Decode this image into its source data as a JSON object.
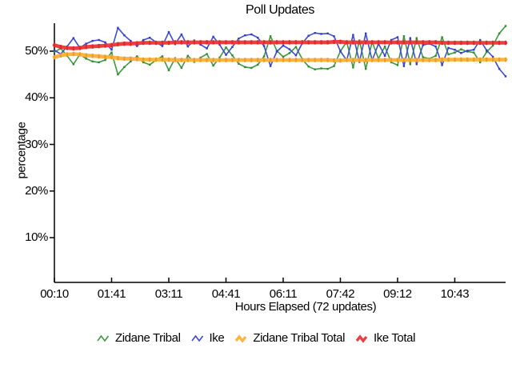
{
  "window": {
    "background": "#ffffff"
  },
  "chart_data": {
    "type": "line",
    "title": "Poll Updates",
    "xlabel": "Hours Elapsed (72 updates)",
    "ylabel": "percentage",
    "num_points": 72,
    "ylim": [
      0.4,
      56.0
    ],
    "grid": false,
    "legend_position": "bottom",
    "axis_color": "#000000",
    "y_ticks": [
      {
        "value": 10,
        "label": "10%"
      },
      {
        "value": 20,
        "label": "20%"
      },
      {
        "value": 30,
        "label": "30%"
      },
      {
        "value": 40,
        "label": "40%"
      },
      {
        "value": 50,
        "label": "50%"
      }
    ],
    "x_ticks": [
      {
        "index": 0,
        "label": "00:10"
      },
      {
        "index": 9,
        "label": "01:41"
      },
      {
        "index": 18,
        "label": "03:11"
      },
      {
        "index": 27,
        "label": "04:41"
      },
      {
        "index": 36,
        "label": "06:11"
      },
      {
        "index": 45,
        "label": "07:42"
      },
      {
        "index": 54,
        "label": "09:12"
      },
      {
        "index": 63,
        "label": "10:43"
      }
    ],
    "series": [
      {
        "name": "Zidane Tribal",
        "color": "#3d9b3d",
        "width": 1.6,
        "legend_stroke": 1.6,
        "marker": {
          "w": 2.4,
          "h": 2.4,
          "color": "#2e8b2e"
        },
        "values": [
          49.8,
          50.6,
          49.0,
          47.2,
          49.3,
          48.4,
          47.8,
          47.6,
          48.1,
          49.7,
          45.0,
          46.6,
          47.8,
          48.9,
          47.6,
          47.1,
          48.1,
          48.9,
          45.9,
          48.5,
          46.4,
          49.0,
          47.7,
          48.6,
          49.4,
          46.9,
          48.6,
          50.8,
          49.1,
          47.3,
          46.6,
          46.4,
          47.1,
          48.9,
          53.2,
          50.1,
          48.8,
          49.6,
          50.9,
          48.3,
          46.7,
          46.1,
          46.3,
          46.2,
          46.8,
          50.0,
          52.0,
          46.5,
          52.3,
          46.2,
          52.0,
          48.4,
          51.0,
          47.6,
          47.0,
          53.2,
          47.2,
          52.8,
          48.7,
          48.4,
          49.0,
          53.0,
          49.3,
          49.7,
          50.4,
          49.9,
          49.7,
          47.6,
          49.8,
          51.2,
          53.8,
          55.4
        ]
      },
      {
        "name": "Ike",
        "color": "#3d4cd3",
        "width": 1.6,
        "legend_stroke": 1.6,
        "marker": {
          "w": 2.4,
          "h": 2.4,
          "color": "#2f3cc4"
        },
        "values": [
          50.2,
          49.4,
          51.0,
          52.8,
          50.7,
          51.6,
          52.2,
          52.4,
          51.9,
          50.3,
          55.0,
          53.4,
          52.2,
          51.1,
          52.4,
          52.9,
          51.9,
          51.1,
          54.1,
          51.5,
          53.6,
          51.0,
          52.3,
          51.4,
          50.6,
          53.1,
          51.4,
          49.2,
          50.9,
          52.7,
          53.4,
          53.6,
          52.9,
          51.1,
          46.8,
          49.9,
          51.2,
          50.4,
          49.1,
          51.7,
          53.3,
          53.9,
          53.7,
          53.8,
          53.2,
          50.0,
          48.0,
          53.5,
          47.7,
          53.8,
          48.0,
          51.6,
          49.0,
          52.4,
          53.0,
          46.8,
          52.8,
          47.2,
          51.3,
          51.6,
          51.0,
          47.0,
          50.7,
          50.3,
          49.6,
          50.1,
          50.3,
          52.4,
          50.2,
          48.8,
          46.2,
          44.6
        ]
      },
      {
        "name": "Zidane Tribal Total",
        "color": "#fcb440",
        "width": 4.6,
        "legend_stroke": 3.4,
        "marker": {
          "w": 2.2,
          "h": 5.4,
          "color": "#f09a2a"
        },
        "values": [
          48.7,
          49.1,
          49.3,
          49.4,
          49.3,
          49.1,
          49.0,
          48.9,
          48.8,
          48.7,
          48.5,
          48.4,
          48.4,
          48.3,
          48.2,
          48.2,
          48.2,
          48.2,
          48.2,
          48.1,
          48.1,
          48.1,
          48.1,
          48.1,
          48.1,
          48.1,
          48.1,
          48.1,
          48.1,
          48.1,
          48.1,
          48.1,
          48.1,
          48.1,
          48.1,
          48.1,
          48.1,
          48.1,
          48.1,
          48.1,
          48.1,
          48.1,
          48.1,
          48.1,
          48.0,
          48.0,
          48.1,
          48.1,
          48.1,
          48.1,
          48.1,
          48.1,
          48.1,
          48.1,
          48.1,
          48.1,
          48.1,
          48.1,
          48.1,
          48.1,
          48.1,
          48.2,
          48.2,
          48.2,
          48.2,
          48.2,
          48.2,
          48.2,
          48.2,
          48.2,
          48.2,
          48.2
        ]
      },
      {
        "name": "Ike Total",
        "color": "#ee3d3d",
        "width": 4.6,
        "legend_stroke": 3.4,
        "marker": {
          "w": 2.2,
          "h": 5.4,
          "color": "#d92b2b"
        },
        "values": [
          51.3,
          50.9,
          50.7,
          50.6,
          50.7,
          50.9,
          51.0,
          51.1,
          51.2,
          51.3,
          51.5,
          51.6,
          51.6,
          51.7,
          51.8,
          51.8,
          51.8,
          51.8,
          51.8,
          51.9,
          51.9,
          51.9,
          51.9,
          51.9,
          51.9,
          51.9,
          51.9,
          51.9,
          51.9,
          51.9,
          51.9,
          51.9,
          51.9,
          51.9,
          51.9,
          51.9,
          51.9,
          51.9,
          51.9,
          51.9,
          51.9,
          51.9,
          51.9,
          51.9,
          52.0,
          52.0,
          51.9,
          51.9,
          51.9,
          51.9,
          51.9,
          51.9,
          51.9,
          51.9,
          51.9,
          51.9,
          51.9,
          51.9,
          51.9,
          51.9,
          51.9,
          51.8,
          51.8,
          51.8,
          51.8,
          51.8,
          51.8,
          51.8,
          51.8,
          51.8,
          51.8,
          51.8
        ]
      }
    ]
  }
}
